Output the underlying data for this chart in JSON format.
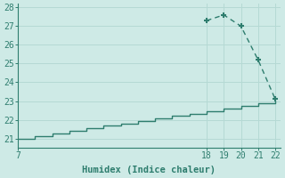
{
  "line1_x": [
    7,
    8,
    9,
    10,
    11,
    12,
    13,
    14,
    15,
    16,
    17,
    18,
    19,
    20,
    21,
    22
  ],
  "line1_y": [
    21.0,
    21.13,
    21.27,
    21.4,
    21.53,
    21.67,
    21.8,
    21.93,
    22.07,
    22.2,
    22.33,
    22.47,
    22.6,
    22.73,
    22.87,
    23.0
  ],
  "line2_x": [
    18,
    19,
    20,
    21,
    22
  ],
  "line2_y": [
    27.3,
    27.6,
    27.0,
    25.2,
    23.1
  ],
  "xlim": [
    7,
    22.3
  ],
  "ylim": [
    20.5,
    28.2
  ],
  "xticks": [
    7,
    18,
    19,
    20,
    21,
    22
  ],
  "yticks": [
    21,
    22,
    23,
    24,
    25,
    26,
    27,
    28
  ],
  "xlabel": "Humidex (Indice chaleur)",
  "line1_color": "#2e7d6e",
  "line2_color": "#2e7d6e",
  "marker_color": "#2e7d6e",
  "bg_color": "#ceeae6",
  "grid_color": "#b5d9d4",
  "axis_color": "#2e7d6e",
  "text_color": "#2e7d6e",
  "font_family": "monospace"
}
